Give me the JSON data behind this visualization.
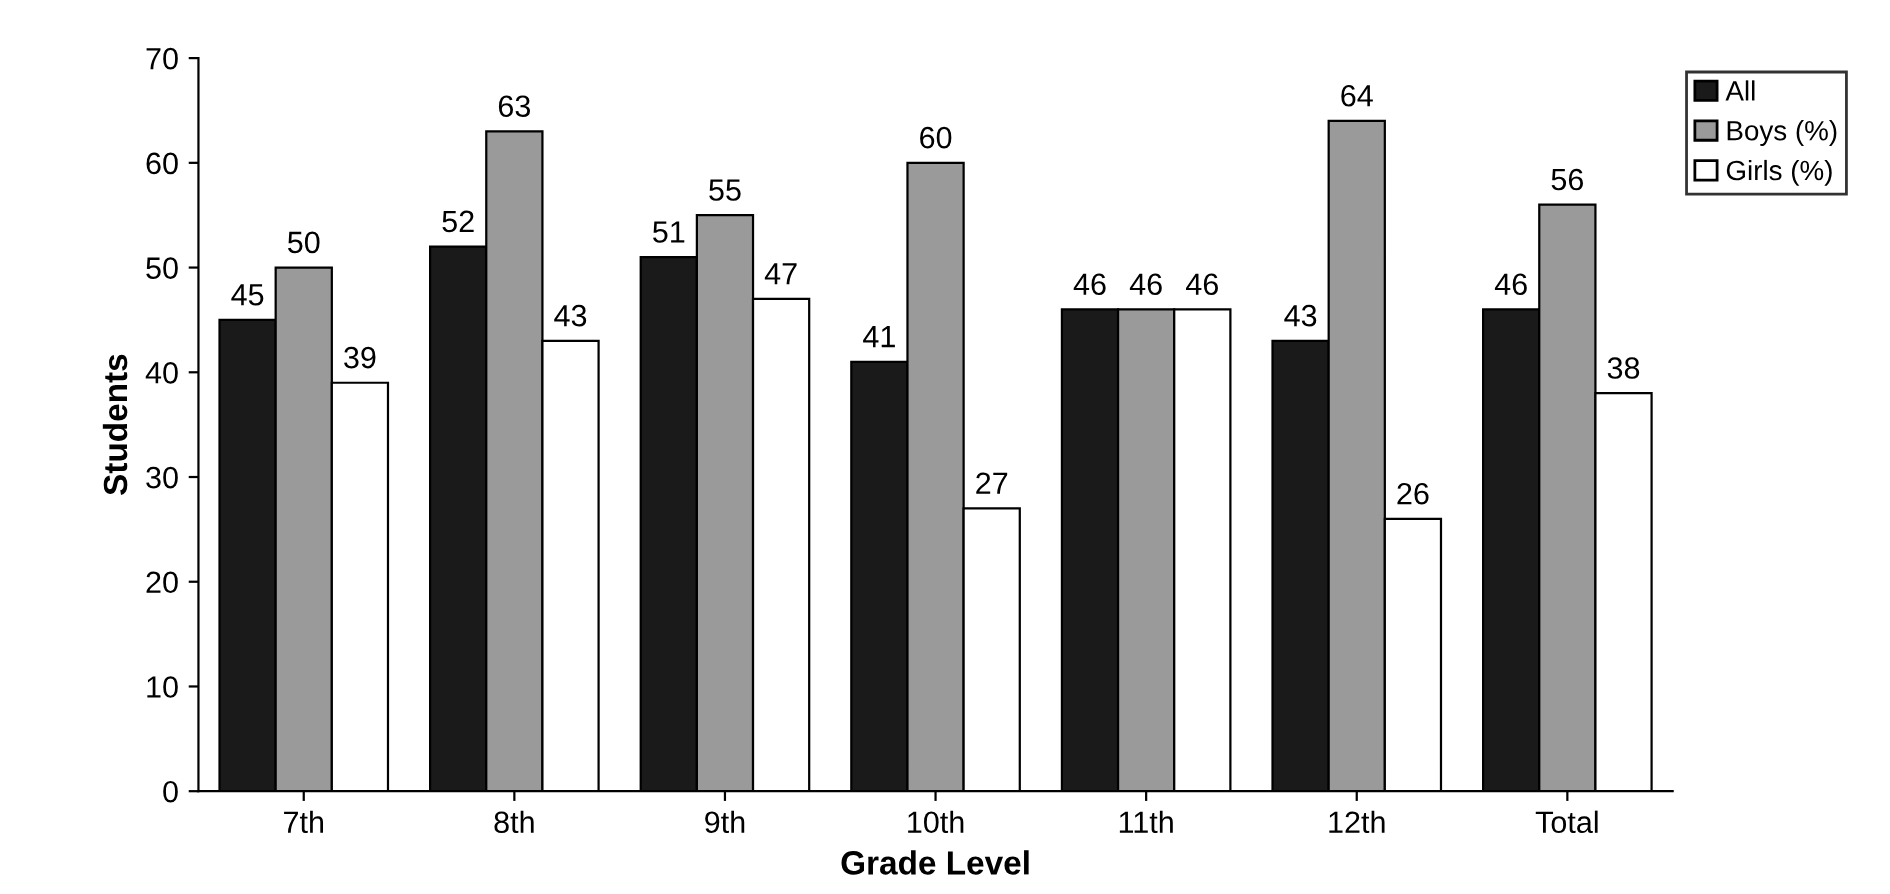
{
  "chart_data": {
    "type": "bar",
    "xlabel": "Grade Level",
    "ylabel": "Students",
    "categories": [
      "7th",
      "8th",
      "9th",
      "10th",
      "11th",
      "12th",
      "Total"
    ],
    "series": [
      {
        "name": "All",
        "color": "#1a1a1a",
        "values": [
          45,
          52,
          51,
          41,
          46,
          43,
          46
        ]
      },
      {
        "name": "Boys (%)",
        "color": "#9a9a9a",
        "values": [
          50,
          63,
          55,
          60,
          46,
          64,
          56
        ]
      },
      {
        "name": "Girls (%)",
        "color": "#ffffff",
        "values": [
          39,
          43,
          47,
          27,
          46,
          26,
          38
        ]
      }
    ],
    "ylim": [
      0,
      70
    ],
    "yticks": [
      0,
      10,
      20,
      30,
      40,
      50,
      60,
      70
    ],
    "grid": false,
    "legend": "top right",
    "data_labels": true
  }
}
